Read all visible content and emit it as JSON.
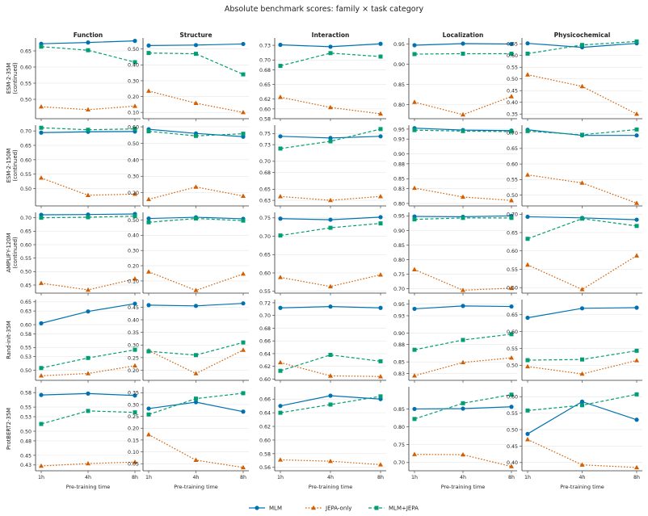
{
  "chart_data": {
    "type": "line",
    "title": "Absolute benchmark scores: family × task category",
    "x": [
      "1h",
      "4h",
      "8h"
    ],
    "xlabel": "Pre-training time",
    "columns": [
      "Function",
      "Structure",
      "Interaction",
      "Localization",
      "Physicochemical"
    ],
    "rows": [
      {
        "label": "ESM-2-35M",
        "sublabel": "(continued)"
      },
      {
        "label": "ESM-2-150M",
        "sublabel": "(continued)"
      },
      {
        "label": "AMPLIFY-120M",
        "sublabel": "(continued)"
      },
      {
        "label": "Rand-init-35M",
        "sublabel": ""
      },
      {
        "label": "ProtBERT2-35M",
        "sublabel": ""
      }
    ],
    "legend": {
      "placement": "bottom-center",
      "entries": [
        {
          "name": "MLM",
          "color": "#0072b2",
          "marker": "circle",
          "dash": "solid"
        },
        {
          "name": "JEPA-only",
          "color": "#d55e00",
          "marker": "triangle",
          "dash": "dotted"
        },
        {
          "name": "MLM+JEPA",
          "color": "#009e73",
          "marker": "square",
          "dash": "dashed"
        }
      ]
    },
    "grid": "horizontal",
    "panels": [
      {
        "row": 0,
        "col": 0,
        "ylim": [
          0.44,
          0.69
        ],
        "ticks": [
          "0.50",
          "0.55",
          "0.60",
          "0.65"
        ],
        "mlm": [
          0.672,
          0.676,
          0.681
        ],
        "jepa": [
          0.477,
          0.468,
          0.479
        ],
        "both": [
          0.663,
          0.652,
          0.615
        ]
      },
      {
        "row": 0,
        "col": 1,
        "ylim": [
          0.06,
          0.57
        ],
        "ticks": [
          "0.10",
          "0.20",
          "0.30",
          "0.40",
          "0.50"
        ],
        "mlm": [
          0.522,
          0.525,
          0.532
        ],
        "jepa": [
          0.235,
          0.158,
          0.1
        ],
        "both": [
          0.475,
          0.47,
          0.34
        ]
      },
      {
        "row": 0,
        "col": 2,
        "ylim": [
          0.58,
          0.745
        ],
        "ticks": [
          "0.58",
          "0.60",
          "0.62",
          "0.65",
          "0.68",
          "0.70",
          "0.73"
        ],
        "mlm": [
          0.731,
          0.727,
          0.733
        ],
        "jepa": [
          0.624,
          0.603,
          0.59
        ],
        "both": [
          0.688,
          0.714,
          0.707
        ]
      },
      {
        "row": 0,
        "col": 3,
        "ylim": [
          0.765,
          0.965
        ],
        "ticks": [
          "0.80",
          "0.85",
          "0.90",
          "0.95"
        ],
        "mlm": [
          0.947,
          0.951,
          0.95
        ],
        "jepa": [
          0.806,
          0.775,
          0.82
        ],
        "both": [
          0.925,
          0.926,
          0.926
        ]
      },
      {
        "row": 0,
        "col": 4,
        "ylim": [
          0.33,
          0.675
        ],
        "ticks": [
          "0.35",
          "0.40",
          "0.45",
          "0.50",
          "0.55",
          "0.60",
          "0.65"
        ],
        "mlm": [
          0.652,
          0.635,
          0.652
        ],
        "jepa": [
          0.518,
          0.468,
          0.35
        ],
        "both": [
          0.608,
          0.645,
          0.66
        ]
      },
      {
        "row": 1,
        "col": 0,
        "ylim": [
          0.44,
          0.72
        ],
        "ticks": [
          "0.50",
          "0.55",
          "0.60",
          "0.65",
          "0.70"
        ],
        "mlm": [
          0.694,
          0.697,
          0.698
        ],
        "jepa": [
          0.537,
          0.477,
          0.481
        ],
        "both": [
          0.711,
          0.704,
          0.707
        ]
      },
      {
        "row": 1,
        "col": 1,
        "ylim": [
          0.12,
          0.61
        ],
        "ticks": [
          "0.20",
          "0.30",
          "0.40",
          "0.50",
          "0.60"
        ],
        "mlm": [
          0.585,
          0.56,
          0.54
        ],
        "jepa": [
          0.16,
          0.235,
          0.18
        ],
        "both": [
          0.573,
          0.545,
          0.558
        ]
      },
      {
        "row": 1,
        "col": 2,
        "ylim": [
          0.62,
          0.765
        ],
        "ticks": [
          "0.63",
          "0.65",
          "0.68",
          "0.70",
          "0.73",
          "0.75"
        ],
        "mlm": [
          0.745,
          0.742,
          0.745
        ],
        "jepa": [
          0.637,
          0.63,
          0.637
        ],
        "both": [
          0.723,
          0.736,
          0.758
        ]
      },
      {
        "row": 1,
        "col": 3,
        "ylim": [
          0.795,
          0.958
        ],
        "ticks": [
          "0.80",
          "0.83",
          "0.85",
          "0.88",
          "0.90",
          "0.93",
          "0.95"
        ],
        "mlm": [
          0.952,
          0.948,
          0.947
        ],
        "jepa": [
          0.831,
          0.813,
          0.806
        ],
        "both": [
          0.948,
          0.946,
          0.945
        ]
      },
      {
        "row": 1,
        "col": 4,
        "ylim": [
          0.465,
          0.725
        ],
        "ticks": [
          "0.50",
          "0.55",
          "0.60",
          "0.65",
          "0.70"
        ],
        "mlm": [
          0.71,
          0.692,
          0.692
        ],
        "jepa": [
          0.565,
          0.539,
          0.474
        ],
        "both": [
          0.706,
          0.694,
          0.711
        ]
      },
      {
        "row": 2,
        "col": 0,
        "ylim": [
          0.42,
          0.72
        ],
        "ticks": [
          "0.45",
          "0.50",
          "0.55",
          "0.60",
          "0.65",
          "0.70"
        ],
        "mlm": [
          0.711,
          0.712,
          0.714
        ],
        "jepa": [
          0.457,
          0.432,
          0.473
        ],
        "both": [
          0.7,
          0.702,
          0.706
        ]
      },
      {
        "row": 2,
        "col": 1,
        "ylim": [
          0.02,
          0.55
        ],
        "ticks": [
          "0.10",
          "0.20",
          "0.30",
          "0.40",
          "0.50"
        ],
        "mlm": [
          0.51,
          0.518,
          0.508
        ],
        "jepa": [
          0.16,
          0.038,
          0.146
        ],
        "both": [
          0.485,
          0.51,
          0.496
        ]
      },
      {
        "row": 2,
        "col": 2,
        "ylim": [
          0.545,
          0.765
        ],
        "ticks": [
          "0.55",
          "0.60",
          "0.65",
          "0.70",
          "0.75"
        ],
        "mlm": [
          0.748,
          0.745,
          0.752
        ],
        "jepa": [
          0.588,
          0.563,
          0.595
        ],
        "both": [
          0.702,
          0.723,
          0.735
        ]
      },
      {
        "row": 2,
        "col": 3,
        "ylim": [
          0.685,
          0.962
        ],
        "ticks": [
          "0.70",
          "0.75",
          "0.80",
          "0.85",
          "0.90",
          "0.95"
        ],
        "mlm": [
          0.948,
          0.947,
          0.95
        ],
        "jepa": [
          0.766,
          0.695,
          0.702
        ],
        "both": [
          0.938,
          0.943,
          0.943
        ]
      },
      {
        "row": 2,
        "col": 4,
        "ylim": [
          0.485,
          0.705
        ],
        "ticks": [
          "0.50",
          "0.55",
          "0.60",
          "0.65",
          "0.70"
        ],
        "mlm": [
          0.693,
          0.69,
          0.685
        ],
        "jepa": [
          0.562,
          0.495,
          0.587
        ],
        "both": [
          0.633,
          0.688,
          0.668
        ]
      },
      {
        "row": 3,
        "col": 0,
        "ylim": [
          0.478,
          0.655
        ],
        "ticks": [
          "0.50",
          "0.53",
          "0.55",
          "0.58",
          "0.60",
          "0.63",
          "0.65"
        ],
        "mlm": [
          0.603,
          0.629,
          0.646
        ],
        "jepa": [
          0.488,
          0.493,
          0.51
        ],
        "both": [
          0.505,
          0.527,
          0.545
        ]
      },
      {
        "row": 3,
        "col": 1,
        "ylim": [
          0.16,
          0.48
        ],
        "ticks": [
          "0.20",
          "0.25",
          "0.30",
          "0.35",
          "0.40",
          "0.45"
        ],
        "mlm": [
          0.458,
          0.455,
          0.465
        ],
        "jepa": [
          0.278,
          0.187,
          0.28
        ],
        "both": [
          0.275,
          0.26,
          0.31
        ]
      },
      {
        "row": 3,
        "col": 2,
        "ylim": [
          0.598,
          0.725
        ],
        "ticks": [
          "0.60",
          "0.62",
          "0.64",
          "0.66",
          "0.68",
          "0.70",
          "0.72"
        ],
        "mlm": [
          0.712,
          0.714,
          0.712
        ],
        "jepa": [
          0.626,
          0.605,
          0.604
        ],
        "both": [
          0.613,
          0.638,
          0.628
        ]
      },
      {
        "row": 3,
        "col": 3,
        "ylim": [
          0.818,
          0.958
        ],
        "ticks": [
          "0.83",
          "0.85",
          "0.88",
          "0.90",
          "0.93",
          "0.95"
        ],
        "mlm": [
          0.942,
          0.947,
          0.946
        ],
        "jepa": [
          0.826,
          0.849,
          0.857
        ],
        "both": [
          0.871,
          0.888,
          0.898
        ]
      },
      {
        "row": 3,
        "col": 4,
        "ylim": [
          0.455,
          0.695
        ],
        "ticks": [
          "0.50",
          "0.55",
          "0.60",
          "0.65"
        ],
        "mlm": [
          0.641,
          0.669,
          0.671
        ],
        "jepa": [
          0.496,
          0.474,
          0.514
        ],
        "both": [
          0.515,
          0.517,
          0.543
        ]
      },
      {
        "row": 4,
        "col": 0,
        "ylim": [
          0.418,
          0.592
        ],
        "ticks": [
          "0.43",
          "0.45",
          "0.48",
          "0.50",
          "0.53",
          "0.55",
          "0.58"
        ],
        "mlm": [
          0.575,
          0.578,
          0.574
        ],
        "jepa": [
          0.428,
          0.433,
          0.436
        ],
        "both": [
          0.515,
          0.542,
          0.539
        ]
      },
      {
        "row": 4,
        "col": 1,
        "ylim": [
          0.02,
          0.375
        ],
        "ticks": [
          "0.05",
          "0.10",
          "0.15",
          "0.20",
          "0.25",
          "0.30",
          "0.35"
        ],
        "mlm": [
          0.283,
          0.31,
          0.27
        ],
        "jepa": [
          0.173,
          0.065,
          0.034
        ],
        "both": [
          0.258,
          0.325,
          0.348
        ]
      },
      {
        "row": 4,
        "col": 2,
        "ylim": [
          0.555,
          0.678
        ],
        "ticks": [
          "0.56",
          "0.58",
          "0.60",
          "0.62",
          "0.64",
          "0.66"
        ],
        "mlm": [
          0.65,
          0.665,
          0.66
        ],
        "jepa": [
          0.571,
          0.569,
          0.564
        ],
        "both": [
          0.64,
          0.652,
          0.664
        ]
      },
      {
        "row": 4,
        "col": 3,
        "ylim": [
          0.677,
          0.912
        ],
        "ticks": [
          "0.70",
          "0.75",
          "0.80",
          "0.85"
        ],
        "mlm": [
          0.85,
          0.851,
          0.856
        ],
        "jepa": [
          0.723,
          0.722,
          0.689
        ],
        "both": [
          0.822,
          0.866,
          0.89
        ]
      },
      {
        "row": 4,
        "col": 4,
        "ylim": [
          0.375,
          0.63
        ],
        "ticks": [
          "0.40",
          "0.45",
          "0.50",
          "0.55",
          "0.60"
        ],
        "mlm": [
          0.487,
          0.585,
          0.53
        ],
        "jepa": [
          0.47,
          0.393,
          0.385
        ],
        "both": [
          0.558,
          0.574,
          0.607
        ]
      }
    ]
  }
}
